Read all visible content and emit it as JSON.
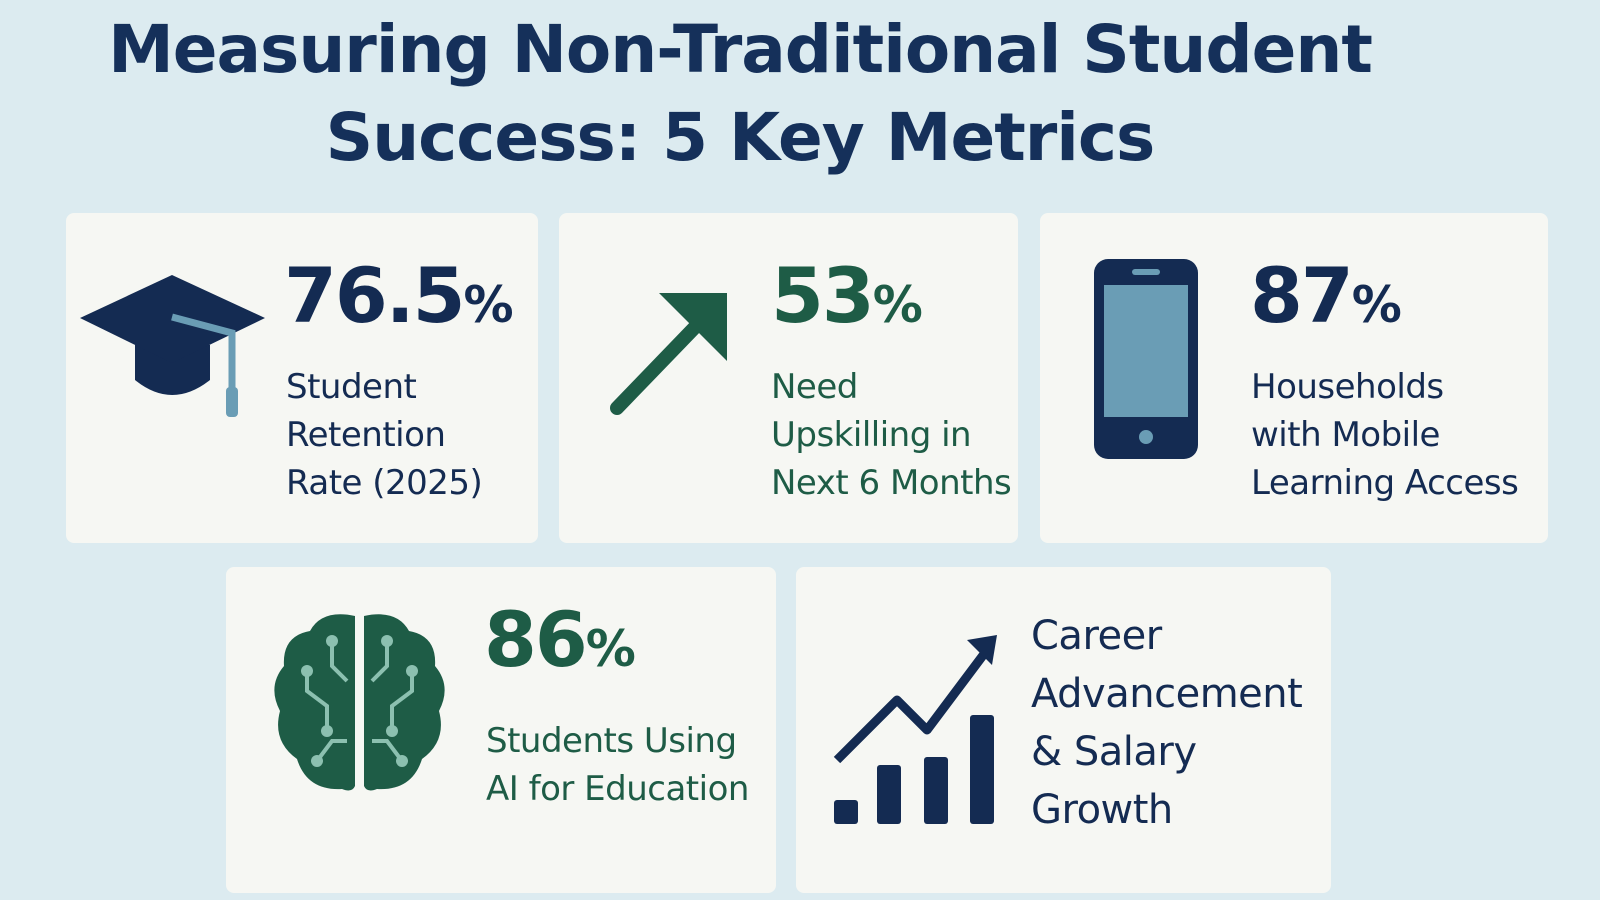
{
  "title": {
    "line1": "Measuring Non-Traditional Student",
    "line2": "Success: 5 Key Metrics"
  },
  "colors": {
    "background": "#dcebf0",
    "card": "#f6f7f3",
    "navy": "#142b52",
    "green": "#1e5c46",
    "accent_blue": "#6a9db5"
  },
  "metrics": [
    {
      "value": "76.5",
      "unit": "%",
      "label": [
        "Student",
        "Retention",
        "Rate (2025)"
      ],
      "icon": "graduation-cap-icon"
    },
    {
      "value": "53",
      "unit": "%",
      "label": [
        "Need",
        "Upskilling in",
        "Next 6 Months"
      ],
      "icon": "arrow-up-right-icon"
    },
    {
      "value": "87",
      "unit": "%",
      "label": [
        "Households",
        "with Mobile",
        "Learning Access"
      ],
      "icon": "smartphone-icon"
    },
    {
      "value": "86",
      "unit": "%",
      "label": [
        "Students Using",
        "AI for Education"
      ],
      "icon": "ai-brain-icon"
    },
    {
      "label": [
        "Career",
        "Advancement",
        "& Salary",
        "Growth"
      ],
      "icon": "bar-chart-growth-icon"
    }
  ]
}
